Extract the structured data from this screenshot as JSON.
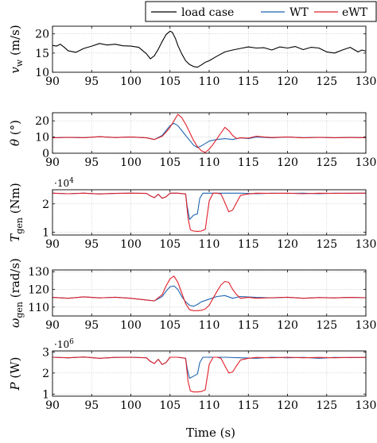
{
  "legend": [
    {
      "name": "load case",
      "color": "#000000"
    },
    {
      "name": "WT",
      "color": "#1f66b0"
    },
    {
      "name": "eWT",
      "color": "#e0202a"
    }
  ],
  "xlabel": "Time (s)",
  "chart_data": [
    {
      "type": "line",
      "ylabel_main": "v",
      "ylabel_sub": "w",
      "ylabel_unit": " (m/s)",
      "exponent": "",
      "xlim": [
        90,
        130
      ],
      "ylim": [
        10,
        22
      ],
      "xticks": [
        90,
        95,
        100,
        105,
        110,
        115,
        120,
        125,
        130
      ],
      "yticks": [
        10,
        15,
        20
      ],
      "grid": true,
      "series": [
        {
          "name": "load case",
          "color": "#000000",
          "x": [
            90,
            90.5,
            91,
            91.5,
            92,
            93,
            94,
            95,
            96,
            97,
            98,
            99,
            100,
            101,
            102,
            102.5,
            103,
            103.5,
            104,
            104.5,
            105,
            105.3,
            105.7,
            106,
            106.5,
            107,
            107.5,
            108,
            108.5,
            109,
            109.5,
            110,
            111,
            112,
            113,
            114,
            115,
            116,
            117,
            118,
            119,
            120,
            121,
            122,
            123,
            124,
            125,
            126,
            127,
            128,
            129,
            129.5,
            130
          ],
          "y": [
            17,
            16.8,
            17.3,
            16.5,
            15.6,
            15.2,
            16.2,
            16.8,
            17.5,
            17.1,
            17.3,
            16.9,
            16.8,
            16.5,
            14.8,
            13.5,
            14.3,
            16.0,
            18.0,
            19.8,
            20.7,
            20.4,
            18.8,
            17.0,
            14.8,
            13.0,
            12.0,
            11.5,
            11.3,
            11.9,
            12.6,
            13.0,
            14.2,
            15.3,
            15.8,
            16.2,
            16.6,
            16.3,
            16.4,
            15.8,
            16.6,
            16.3,
            16.7,
            15.9,
            16.5,
            16.3,
            15.3,
            15.0,
            15.8,
            16.5,
            15.3,
            15.8,
            15.5
          ]
        }
      ]
    },
    {
      "type": "line",
      "ylabel_main": "θ",
      "ylabel_sub": "",
      "ylabel_unit": " (°)",
      "exponent": "",
      "xlim": [
        90,
        130
      ],
      "ylim": [
        0,
        25
      ],
      "xticks": [
        90,
        95,
        100,
        105,
        110,
        115,
        120,
        125,
        130
      ],
      "yticks": [
        0,
        10,
        20
      ],
      "grid": true,
      "series": [
        {
          "name": "WT",
          "color": "#1f66b0",
          "x": [
            90,
            92,
            94,
            96,
            98,
            100,
            102,
            103,
            104,
            104.5,
            105,
            105.5,
            106,
            106.5,
            107,
            107.5,
            108,
            108.5,
            109,
            109.5,
            110,
            111,
            112,
            113,
            114,
            115,
            116,
            118,
            120,
            122,
            124,
            126,
            128,
            130
          ],
          "y": [
            9.5,
            9.8,
            9.6,
            10.2,
            9.7,
            10,
            9.5,
            8.5,
            11,
            14,
            17,
            18.5,
            17,
            14,
            11,
            8,
            5,
            3.5,
            4.5,
            6,
            7.5,
            8.5,
            9,
            8.5,
            9.5,
            9,
            10,
            9.5,
            10,
            9.6,
            9.8,
            9.5,
            9.8,
            9.6
          ]
        },
        {
          "name": "eWT",
          "color": "#e0202a",
          "x": [
            90,
            92,
            94,
            96,
            98,
            100,
            102,
            103,
            104,
            104.5,
            105,
            105.5,
            106,
            106.5,
            107,
            107.5,
            108,
            108.5,
            109,
            109.5,
            110,
            110.5,
            111,
            111.5,
            112,
            112.5,
            113,
            113.5,
            114,
            115,
            116,
            117,
            118,
            120,
            122,
            124,
            126,
            128,
            130
          ],
          "y": [
            9.5,
            9.8,
            9.6,
            10.2,
            9.7,
            10,
            9.5,
            8.5,
            10.5,
            13,
            16,
            20,
            24,
            22,
            18,
            13,
            8,
            4,
            1.5,
            0.5,
            2.5,
            5.5,
            9,
            12.5,
            16,
            14,
            11,
            9,
            9.5,
            9.3,
            10.5,
            10,
            9.7,
            10,
            9.5,
            9.8,
            9.6,
            9.7,
            9.6
          ]
        }
      ]
    },
    {
      "type": "line",
      "ylabel_main": "T",
      "ylabel_sub": "gen",
      "ylabel_unit": " (Nm)",
      "exponent": "·10",
      "exponent_power": "4",
      "xlim": [
        90,
        130
      ],
      "ylim": [
        0.9,
        2.5
      ],
      "xticks": [
        90,
        95,
        100,
        105,
        110,
        115,
        120,
        125,
        130
      ],
      "yticks": [
        1,
        2
      ],
      "grid": true,
      "series": [
        {
          "name": "WT",
          "color": "#1f66b0",
          "x": [
            90,
            92,
            94,
            96,
            98,
            100,
            102,
            102.5,
            103,
            103.5,
            104,
            104.5,
            105,
            106,
            107,
            107.2,
            107.5,
            108,
            108.5,
            108.8,
            109.2,
            110,
            112,
            114,
            116,
            118,
            120,
            122,
            124,
            126,
            128,
            130
          ],
          "y": [
            2.38,
            2.36,
            2.38,
            2.35,
            2.37,
            2.38,
            2.37,
            2.28,
            2.22,
            2.34,
            2.2,
            2.25,
            2.38,
            2.38,
            2.35,
            1.9,
            1.45,
            1.6,
            1.65,
            2.2,
            2.38,
            2.38,
            2.38,
            2.38,
            2.36,
            2.38,
            2.37,
            2.38,
            2.36,
            2.38,
            2.37,
            2.38
          ]
        },
        {
          "name": "eWT",
          "color": "#e0202a",
          "x": [
            90,
            92,
            94,
            96,
            98,
            100,
            102,
            102.5,
            103,
            103.5,
            104,
            104.5,
            105,
            106,
            107,
            107.3,
            107.6,
            108,
            108.5,
            109,
            109.5,
            110,
            110.5,
            111,
            111.5,
            112,
            112.5,
            113,
            113.5,
            114,
            115,
            116,
            118,
            120,
            122,
            124,
            126,
            128,
            130
          ],
          "y": [
            2.38,
            2.36,
            2.38,
            2.35,
            2.37,
            2.38,
            2.37,
            2.28,
            2.22,
            2.34,
            2.2,
            2.25,
            2.38,
            2.38,
            2.35,
            1.5,
            1.08,
            1.04,
            1.03,
            1.04,
            1.1,
            2.1,
            2.38,
            2.38,
            2.35,
            2.05,
            1.72,
            1.78,
            2.05,
            2.3,
            2.35,
            2.38,
            2.37,
            2.38,
            2.36,
            2.38,
            2.37,
            2.38,
            2.38
          ]
        }
      ]
    },
    {
      "type": "line",
      "ylabel_main": "ω",
      "ylabel_sub": "gen",
      "ylabel_unit": " (rad/s)",
      "exponent": "",
      "xlim": [
        90,
        130
      ],
      "ylim": [
        105,
        131
      ],
      "xticks": [
        90,
        95,
        100,
        105,
        110,
        115,
        120,
        125,
        130
      ],
      "yticks": [
        110,
        120,
        130
      ],
      "grid": true,
      "series": [
        {
          "name": "WT",
          "color": "#1f66b0",
          "x": [
            90,
            92,
            94,
            96,
            98,
            100,
            102,
            103,
            104,
            104.5,
            105,
            105.5,
            106,
            106.5,
            107,
            107.5,
            108,
            108.5,
            109,
            110,
            111,
            112,
            113,
            114,
            116,
            118,
            120,
            122,
            124,
            126,
            128,
            130
          ],
          "y": [
            115.5,
            115,
            115.8,
            115.2,
            115.6,
            115,
            114,
            113.5,
            116,
            119,
            121.5,
            122,
            120,
            116,
            113,
            111,
            110.5,
            111.5,
            113,
            114.5,
            116,
            116.5,
            115,
            116,
            115.5,
            115.2,
            115.6,
            115,
            115.4,
            115.2,
            115.5,
            115.3
          ]
        },
        {
          "name": "eWT",
          "color": "#e0202a",
          "x": [
            90,
            92,
            94,
            96,
            98,
            100,
            102,
            103,
            104,
            104.5,
            105,
            105.5,
            106,
            106.5,
            107,
            107.5,
            108,
            108.5,
            109,
            109.5,
            110,
            110.5,
            111,
            111.5,
            112,
            112.5,
            113,
            113.5,
            114,
            115,
            116,
            118,
            120,
            122,
            124,
            126,
            128,
            130
          ],
          "y": [
            115.5,
            115,
            115.8,
            115.2,
            115.6,
            115,
            114,
            113.5,
            117,
            122,
            126,
            127.5,
            124,
            118,
            112,
            108.5,
            108,
            108,
            108.2,
            109,
            111,
            115,
            119,
            122.5,
            124.5,
            124,
            120,
            117,
            115,
            115.5,
            115,
            115.3,
            115.6,
            115,
            115.4,
            115.2,
            115.5,
            115.3
          ]
        }
      ]
    },
    {
      "type": "line",
      "ylabel_main": "P",
      "ylabel_sub": "",
      "ylabel_unit": " (W)",
      "exponent": "·10",
      "exponent_power": "6",
      "xlim": [
        90,
        130
      ],
      "ylim": [
        0.9,
        3.05
      ],
      "xticks": [
        90,
        95,
        100,
        105,
        110,
        115,
        120,
        125,
        130
      ],
      "yticks": [
        1,
        2,
        3
      ],
      "grid": true,
      "series": [
        {
          "name": "WT",
          "color": "#1f66b0",
          "x": [
            90,
            92,
            94,
            96,
            98,
            100,
            102,
            102.5,
            103,
            103.5,
            104,
            104.5,
            105,
            106,
            107,
            107.2,
            107.5,
            108,
            108.5,
            108.8,
            109.2,
            110,
            112,
            114,
            116,
            118,
            120,
            122,
            124,
            126,
            128,
            130
          ],
          "y": [
            2.75,
            2.72,
            2.76,
            2.7,
            2.74,
            2.75,
            2.72,
            2.55,
            2.45,
            2.65,
            2.4,
            2.5,
            2.75,
            2.75,
            2.7,
            2.2,
            1.75,
            1.85,
            1.95,
            2.5,
            2.75,
            2.75,
            2.75,
            2.72,
            2.7,
            2.75,
            2.72,
            2.74,
            2.7,
            2.74,
            2.73,
            2.74
          ]
        },
        {
          "name": "eWT",
          "color": "#e0202a",
          "x": [
            90,
            92,
            94,
            96,
            98,
            100,
            102,
            102.5,
            103,
            103.5,
            104,
            104.5,
            105,
            106,
            107,
            107.3,
            107.6,
            108,
            108.5,
            109,
            109.5,
            110,
            110.5,
            111,
            111.5,
            112,
            112.5,
            113,
            113.5,
            114,
            115,
            116,
            118,
            120,
            122,
            124,
            126,
            128,
            130
          ],
          "y": [
            2.75,
            2.72,
            2.76,
            2.7,
            2.74,
            2.75,
            2.72,
            2.55,
            2.45,
            2.65,
            2.4,
            2.5,
            2.75,
            2.75,
            2.7,
            1.6,
            1.15,
            1.1,
            1.1,
            1.12,
            1.2,
            2.4,
            2.75,
            2.75,
            2.7,
            2.35,
            2.0,
            2.05,
            2.35,
            2.62,
            2.7,
            2.74,
            2.72,
            2.75,
            2.72,
            2.74,
            2.72,
            2.74,
            2.74
          ]
        }
      ]
    }
  ]
}
